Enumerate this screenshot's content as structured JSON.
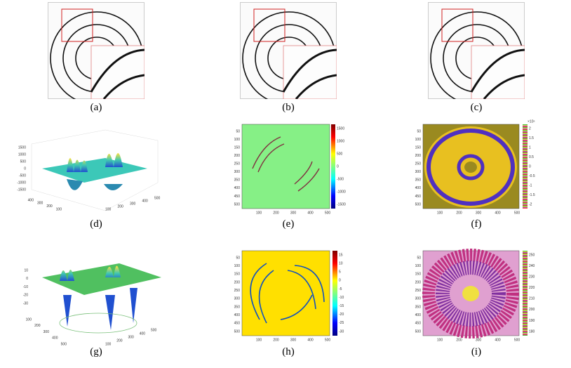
{
  "panels": [
    {
      "caption": "(a)"
    },
    {
      "caption": "(b)"
    },
    {
      "caption": "(c)"
    },
    {
      "caption": "(d)",
      "zticks": [
        1500,
        1000,
        500,
        0,
        -500,
        -1000,
        -1500
      ],
      "yticks": [
        400,
        300,
        200,
        100
      ],
      "xticks": [
        100,
        200,
        300,
        400,
        500
      ]
    },
    {
      "caption": "(e)",
      "yticks": [
        50,
        100,
        150,
        200,
        250,
        300,
        350,
        400,
        450,
        500
      ],
      "xticks": [
        100,
        200,
        300,
        400,
        500
      ],
      "cbar_ticks": [
        1500,
        1000,
        500,
        0,
        -500,
        -1000,
        -1500
      ]
    },
    {
      "caption": "(f)",
      "yticks": [
        50,
        100,
        150,
        200,
        250,
        300,
        350,
        400,
        450,
        500
      ],
      "xticks": [
        100,
        200,
        300,
        400,
        500
      ],
      "cbar_ticks": [
        2,
        1.5,
        1,
        0.5,
        0,
        -0.5,
        -1,
        -1.5,
        -2
      ],
      "cbar_scale": "×10⁵"
    },
    {
      "caption": "(g)",
      "zticks": [
        10,
        0,
        -10,
        -20,
        -30
      ],
      "yticks": [
        100,
        200,
        300,
        400,
        500
      ],
      "xticks": [
        100,
        200,
        300,
        400,
        500
      ]
    },
    {
      "caption": "(h)",
      "yticks": [
        50,
        100,
        150,
        200,
        250,
        300,
        350,
        400,
        450,
        500
      ],
      "xticks": [
        100,
        200,
        300,
        400,
        500
      ],
      "cbar_ticks": [
        15,
        10,
        5,
        0,
        -5,
        -10,
        -15,
        -20,
        -25,
        -30
      ]
    },
    {
      "caption": "(i)",
      "yticks": [
        50,
        100,
        150,
        200,
        250,
        300,
        350,
        400,
        450,
        500
      ],
      "xticks": [
        100,
        200,
        300,
        400,
        500
      ],
      "cbar_ticks": [
        250,
        240,
        230,
        220,
        210,
        200,
        190,
        180
      ]
    }
  ]
}
